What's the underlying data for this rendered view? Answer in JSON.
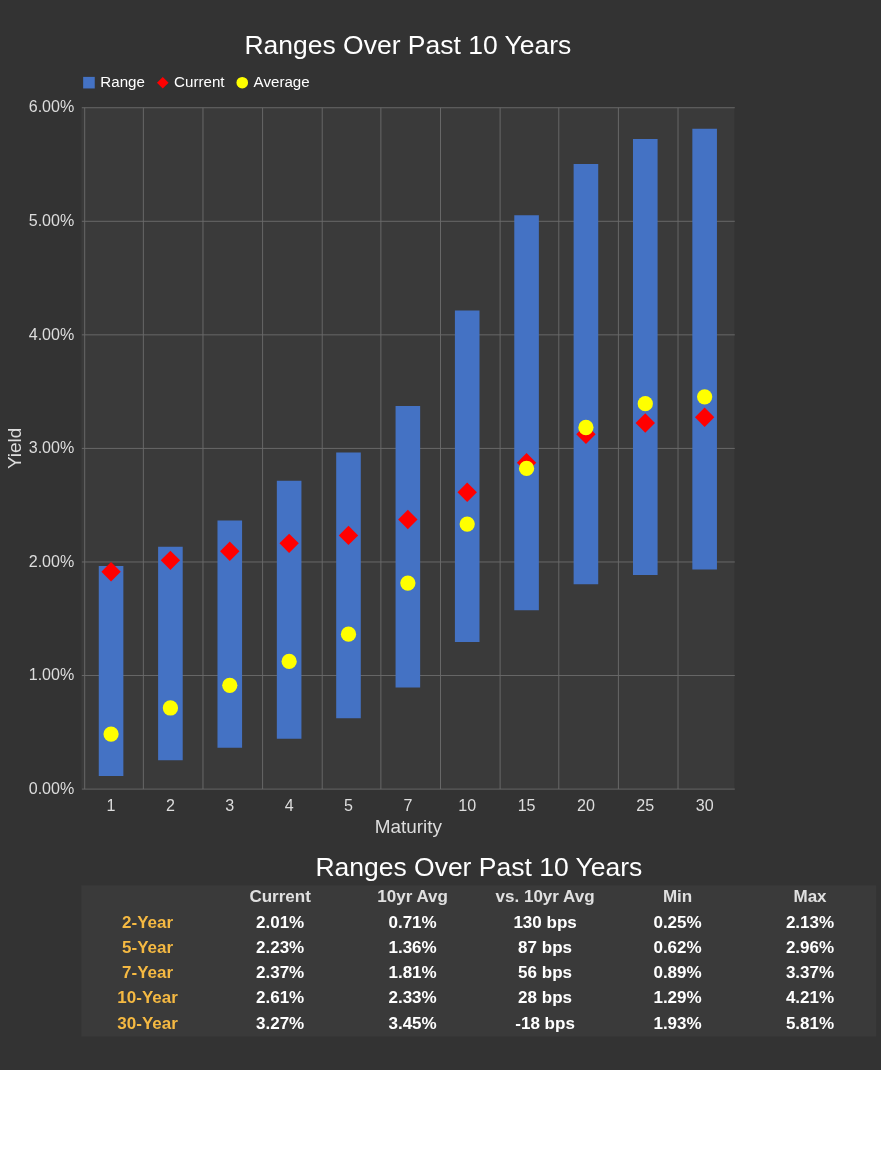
{
  "chart_data": [
    {
      "type": "bar",
      "title": "Ranges Over Past 10 Years",
      "xlabel": "Maturity",
      "ylabel": "Yield",
      "categories": [
        "1",
        "2",
        "3",
        "4",
        "5",
        "7",
        "10",
        "15",
        "20",
        "25",
        "30"
      ],
      "series": [
        {
          "name": "Range",
          "color": "#4472c4",
          "base": [
            0.11,
            0.25,
            0.36,
            0.44,
            0.62,
            0.89,
            1.29,
            1.57,
            1.8,
            1.88,
            1.93
          ],
          "values": [
            1.85,
            1.88,
            2.0,
            2.27,
            2.34,
            2.48,
            2.92,
            3.48,
            3.7,
            3.84,
            3.88
          ]
        },
        {
          "name": "Current",
          "type": "scatter",
          "marker": "diamond",
          "color": "#ff0000",
          "values": [
            1.91,
            2.01,
            2.09,
            2.16,
            2.23,
            2.37,
            2.61,
            2.87,
            3.12,
            3.22,
            3.27
          ]
        },
        {
          "name": "Average",
          "type": "scatter",
          "marker": "circle",
          "color": "#ffff00",
          "values": [
            0.48,
            0.71,
            0.91,
            1.12,
            1.36,
            1.81,
            2.33,
            2.82,
            3.18,
            3.39,
            3.45
          ]
        }
      ],
      "ylim": [
        0,
        6
      ],
      "yticks": [
        {
          "value": 0,
          "label": "0.00%"
        },
        {
          "value": 1,
          "label": "1.00%"
        },
        {
          "value": 2,
          "label": "2.00%"
        },
        {
          "value": 3,
          "label": "3.00%"
        },
        {
          "value": 4,
          "label": "4.00%"
        },
        {
          "value": 5,
          "label": "5.00%"
        },
        {
          "value": 6,
          "label": "6.00%"
        }
      ],
      "grid": true,
      "legend": "top"
    },
    {
      "type": "other",
      "title": "Ranges Over Past 10 Years",
      "categories": [
        "Current",
        "10yr Avg",
        "vs. 10yr Avg",
        "Min",
        "Max"
      ],
      "y_categories": [
        "2-Year",
        "5-Year",
        "7-Year",
        "10-Year",
        "30-Year"
      ],
      "cell_labels": [
        [
          "2.01%",
          "0.71%",
          "130 bps",
          "0.25%",
          "2.13%"
        ],
        [
          "2.23%",
          "1.36%",
          "87 bps",
          "0.62%",
          "2.96%"
        ],
        [
          "2.37%",
          "1.81%",
          "56 bps",
          "0.89%",
          "3.37%"
        ],
        [
          "2.61%",
          "2.33%",
          "28 bps",
          "1.29%",
          "4.21%"
        ],
        [
          "3.27%",
          "3.45%",
          "-18 bps",
          "1.93%",
          "5.81%"
        ]
      ]
    }
  ]
}
